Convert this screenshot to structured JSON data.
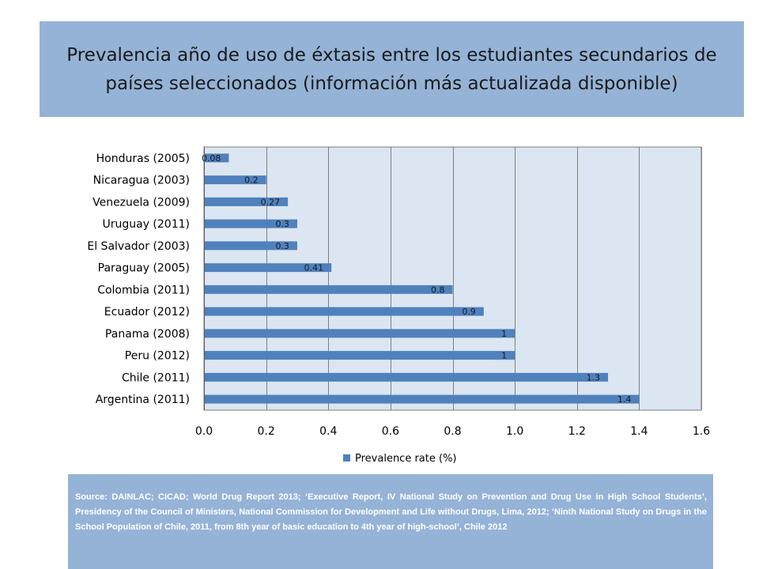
{
  "header": {
    "title": "Prevalencia año de uso de éxtasis entre los estudiantes secundarios de países seleccionados (información más actualizada disponible)"
  },
  "chart_data": {
    "type": "bar",
    "orientation": "horizontal",
    "categories": [
      "Honduras (2005)",
      "Nicaragua (2003)",
      "Venezuela (2009)",
      "Uruguay (2011)",
      "El Salvador (2003)",
      "Paraguay (2005)",
      "Colombia (2011)",
      "Ecuador (2012)",
      "Panama (2008)",
      "Peru (2012)",
      "Chile (2011)",
      "Argentina (2011)"
    ],
    "series": [
      {
        "name": "Prevalence rate (%)",
        "values": [
          0.08,
          0.2,
          0.27,
          0.3,
          0.3,
          0.41,
          0.8,
          0.9,
          1,
          1,
          1.3,
          1.4
        ],
        "labels": [
          "0.08",
          "0.2",
          "0.27",
          "0.3",
          "0.3",
          "0.41",
          "0.8",
          "0.9",
          "1",
          "1",
          "1.3",
          "1.4"
        ]
      }
    ],
    "xlim": [
      0,
      1.6
    ],
    "x_ticks": [
      "0.0",
      "0.2",
      "0.4",
      "0.6",
      "0.8",
      "1.0",
      "1.2",
      "1.4",
      "1.6"
    ],
    "xlabel": "",
    "ylabel": "",
    "grid": true,
    "legend_position": "bottom",
    "colors": {
      "bar": "#4f81bd",
      "plot_background": "#dce6f2",
      "gridline": "#7f7f7f"
    }
  },
  "footer": {
    "source": "Source: DAINLAC; CICAD; World Drug Report 2013; ‘Executive Report, IV National Study on Prevention and Drug Use in High School Students’, Presidency of the Council of Ministers, National Commission for Development and Life without Drugs, Lima, 2012; ‘Ninth National Study on Drugs in the School Population of Chile, 2011, from 8th year of basic education to 4th year of high-school’, Chile 2012"
  }
}
